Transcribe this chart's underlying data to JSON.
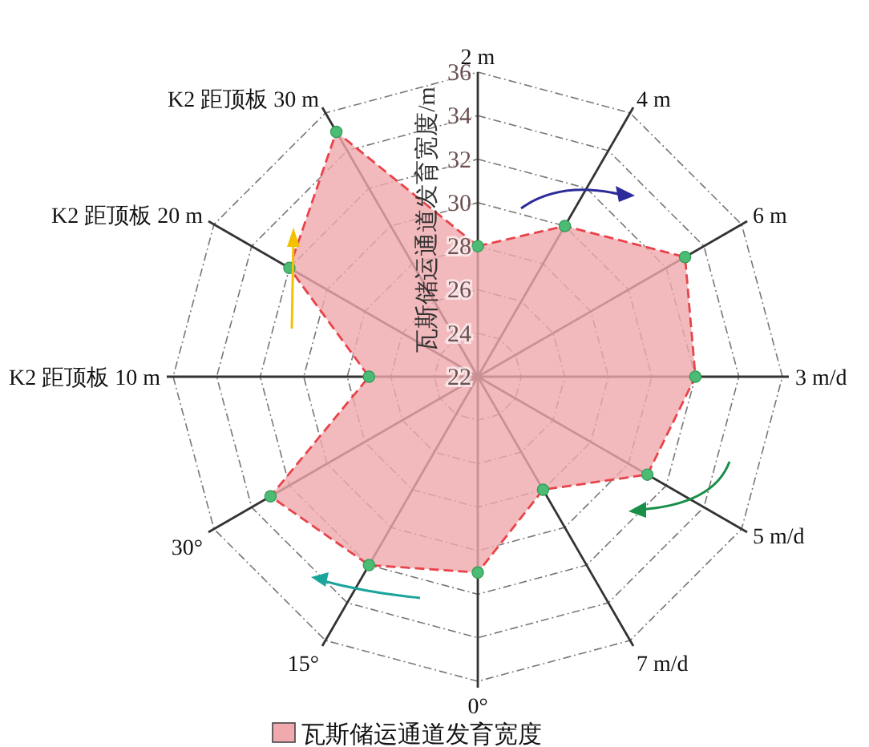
{
  "chart_data": {
    "type": "radar",
    "ylabel": "瓦斯储运通道发育宽度/m",
    "categories": [
      "2 m",
      "4 m",
      "6 m",
      "3 m/d",
      "5 m/d",
      "7 m/d",
      "0°",
      "15°",
      "30°",
      "K2 距顶板 10 m",
      "K2 距顶板 20 m",
      "K2 距顶板 30 m"
    ],
    "series": [
      {
        "name": "瓦斯储运通道发育宽度",
        "color": "#f0a9ad",
        "values": [
          28,
          30,
          33,
          32,
          31,
          28,
          31,
          32,
          33,
          27,
          32,
          35
        ]
      }
    ],
    "ylim": [
      22,
      36
    ],
    "yticks": [
      22,
      24,
      26,
      28,
      30,
      32,
      34,
      36
    ],
    "grid": true,
    "legend": "bottom",
    "marker": "circle",
    "line_style": "dashed"
  }
}
